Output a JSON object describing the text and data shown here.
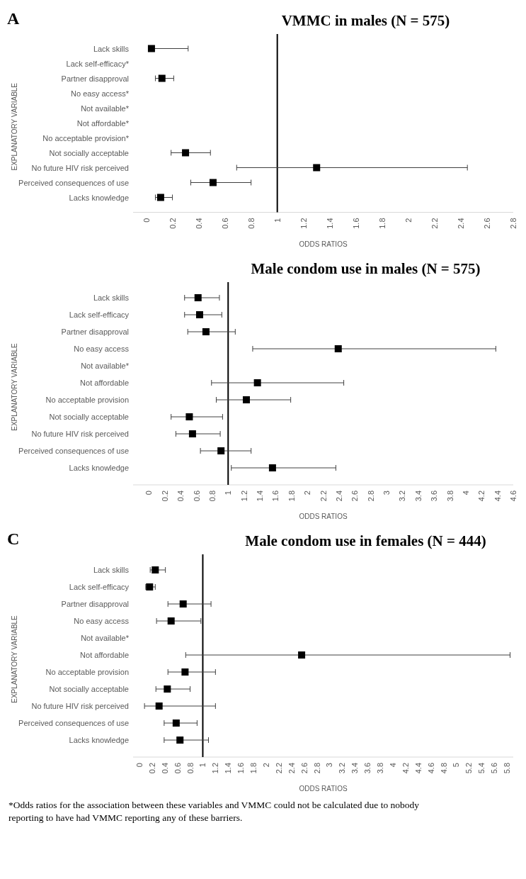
{
  "chart_data": [
    {
      "type": "scatter",
      "title": "VMMC in males (N = 575)",
      "xlabel": "ODDS RATIOS",
      "ylabel": "EXPLANATORY VARIABLE",
      "annotations": [
        "A"
      ],
      "orientation": "horizontal",
      "marker": "square",
      "color": "#000000",
      "categories": [
        "Lack skills",
        "Lack self-efficacy*",
        "Partner disapproval",
        "No easy access*",
        "Not available*",
        "Not affordable*",
        "No acceptable provision*",
        "Not socially acceptable",
        "No future HIV risk perceived",
        "Perceived consequences of use",
        "Lacks knowledge"
      ],
      "values": [
        0.04,
        null,
        0.12,
        null,
        null,
        null,
        null,
        0.3,
        1.3,
        0.51,
        0.11
      ],
      "errors": [
        [
          0.02,
          0.32
        ],
        null,
        [
          0.07,
          0.21
        ],
        null,
        null,
        null,
        null,
        [
          0.19,
          0.49
        ],
        [
          0.69,
          2.45
        ],
        [
          0.34,
          0.8
        ],
        [
          0.07,
          0.2
        ]
      ],
      "xlim": [
        -0.1,
        2.8
      ],
      "xticks": [
        0,
        0.2,
        0.4,
        0.6,
        0.8,
        1,
        1.2,
        1.4,
        1.6,
        1.8,
        2,
        2.2,
        2.4,
        2.6,
        2.8
      ],
      "ref_lines": [
        {
          "axis": "x",
          "value": 1,
          "color": "#000000"
        }
      ]
    },
    {
      "type": "scatter",
      "title": "Male condom use in males (N = 575)",
      "xlabel": "ODDS RATIOS",
      "ylabel": "EXPLANATORY VARIABLE",
      "orientation": "horizontal",
      "marker": "square",
      "color": "#000000",
      "categories": [
        "Lack skills",
        "Lack self-efficacy",
        "Partner disapproval",
        "No easy access",
        "Not available*",
        "Not affordable",
        "No acceptable provision",
        "Not socially acceptable",
        "No future HIV risk perceived",
        "Perceived consequences of use",
        "Lacks knowledge"
      ],
      "values": [
        0.62,
        0.64,
        0.72,
        2.39,
        null,
        1.37,
        1.23,
        0.51,
        0.55,
        0.91,
        1.56
      ],
      "errors": [
        [
          0.45,
          0.89
        ],
        [
          0.45,
          0.92
        ],
        [
          0.49,
          1.09
        ],
        [
          1.31,
          4.38
        ],
        null,
        [
          0.79,
          2.46
        ],
        [
          0.85,
          1.79
        ],
        [
          0.28,
          0.93
        ],
        [
          0.34,
          0.9
        ],
        [
          0.65,
          1.29
        ],
        [
          1.04,
          2.36
        ]
      ],
      "xlim": [
        -0.2,
        4.6
      ],
      "xticks": [
        0,
        0.2,
        0.4,
        0.6,
        0.8,
        1,
        1.2,
        1.4,
        1.6,
        1.8,
        2,
        2.2,
        2.4,
        2.6,
        2.8,
        3,
        3.2,
        3.4,
        3.6,
        3.8,
        4,
        4.2,
        4.4,
        4.6
      ],
      "ref_lines": [
        {
          "axis": "x",
          "value": 1,
          "color": "#000000"
        }
      ]
    },
    {
      "type": "scatter",
      "title": "Male condom use in females (N = 444)",
      "xlabel": "ODDS RATIOS",
      "ylabel": "EXPLANATORY VARIABLE",
      "annotations": [
        "C",
        "*Odds ratios for the association between these variables and VMMC could not be calculated due to nobody reporting to have had VMMC reporting any of these barriers."
      ],
      "orientation": "horizontal",
      "marker": "square",
      "color": "#000000",
      "categories": [
        "Lack skills",
        "Lack self-efficacy",
        "Partner disapproval",
        "No easy access",
        "Not available*",
        "Not affordable",
        "No acceptable provision",
        "Not socially acceptable",
        "No future HIV risk perceived",
        "Perceived consequences of use",
        "Lacks knowledge"
      ],
      "values": [
        0.25,
        0.16,
        0.69,
        0.5,
        null,
        2.56,
        0.72,
        0.44,
        0.31,
        0.58,
        0.64
      ],
      "errors": [
        [
          0.17,
          0.41
        ],
        [
          0.1,
          0.25
        ],
        [
          0.45,
          1.13
        ],
        [
          0.27,
          0.97
        ],
        null,
        [
          0.73,
          5.85
        ],
        [
          0.45,
          1.2
        ],
        [
          0.26,
          0.8
        ],
        [
          0.08,
          1.2
        ],
        [
          0.39,
          0.91
        ],
        [
          0.39,
          1.09
        ]
      ],
      "xlim": [
        -0.1,
        5.9
      ],
      "xticks": [
        0,
        0.2,
        0.4,
        0.6,
        0.8,
        1,
        1.2,
        1.4,
        1.6,
        1.8,
        2,
        2.2,
        2.4,
        2.6,
        2.8,
        3,
        3.2,
        3.4,
        3.6,
        3.8,
        4,
        4.2,
        4.4,
        4.6,
        4.8,
        5,
        5.2,
        5.4,
        5.6,
        5.8
      ],
      "ref_lines": [
        {
          "axis": "x",
          "value": 1,
          "color": "#000000"
        }
      ]
    }
  ]
}
